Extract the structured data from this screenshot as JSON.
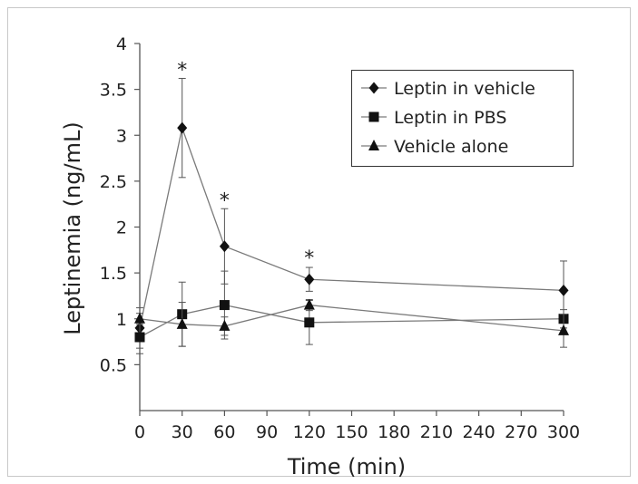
{
  "chart_data": {
    "type": "line",
    "xlabel": "Time (min)",
    "ylabel": "Leptinemia (ng/mL)",
    "x": [
      0,
      30,
      60,
      120,
      300
    ],
    "xticks": [
      0,
      30,
      60,
      90,
      120,
      150,
      180,
      210,
      240,
      270,
      300
    ],
    "yticks": [
      0.5,
      1,
      1.5,
      2,
      2.5,
      3,
      3.5,
      4
    ],
    "xlim": [
      0,
      300
    ],
    "ylim": [
      0,
      4
    ],
    "grid": false,
    "legend_position": "top-right",
    "series": [
      {
        "name": "Leptin in vehicle",
        "marker": "diamond",
        "values": [
          0.9,
          3.08,
          1.79,
          1.43,
          1.31
        ],
        "error": [
          0.22,
          0.54,
          0.41,
          0.13,
          0.32
        ]
      },
      {
        "name": "Leptin in PBS",
        "marker": "square",
        "values": [
          0.8,
          1.05,
          1.15,
          0.96,
          1.0
        ],
        "error": [
          0.18,
          0.35,
          0.37,
          0.24,
          0.1
        ]
      },
      {
        "name": "Vehicle alone",
        "marker": "triangle",
        "values": [
          1.0,
          0.94,
          0.92,
          1.15,
          0.87
        ],
        "error": [
          0.06,
          0.24,
          0.1,
          0.06,
          0.18
        ]
      }
    ],
    "annotations": [
      {
        "text": "*",
        "x": 30,
        "y": 3.62
      },
      {
        "text": "*",
        "x": 60,
        "y": 2.2
      },
      {
        "text": "*",
        "x": 120,
        "y": 1.57
      }
    ]
  }
}
